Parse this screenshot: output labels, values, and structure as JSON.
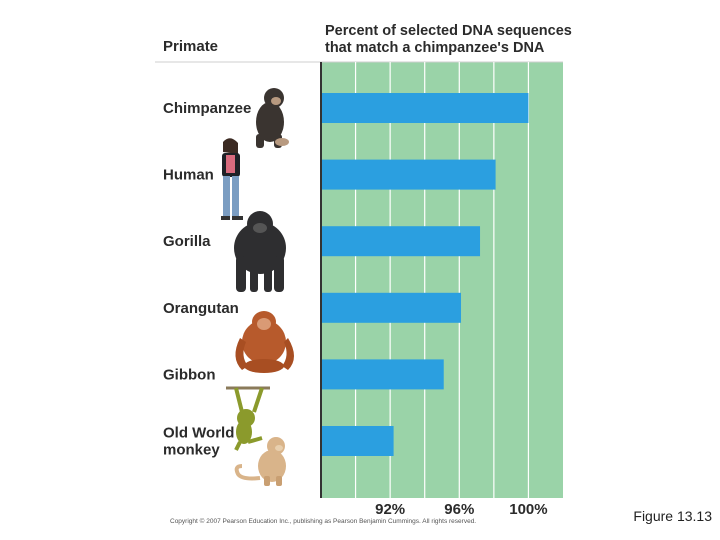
{
  "header": {
    "primate_col": "Primate",
    "chart_title_lines": [
      "Percent of selected DNA sequences",
      "that match a chimpanzee's DNA"
    ]
  },
  "copyright": "Copyright © 2007 Pearson Education Inc., publishing as Pearson Benjamin Cummings. All rights reserved.",
  "caption": "Figure 13.13",
  "colors": {
    "panel": "#9ad3a8",
    "bar": "#2b9fe0",
    "grid": "#ffffff",
    "axis": "#333333",
    "label_bg": "#ffffff"
  },
  "icons": [
    "chimpanzee-icon",
    "human-icon",
    "gorilla-icon",
    "orangutan-icon",
    "gibbon-icon",
    "old-world-monkey-icon"
  ],
  "chart_data": {
    "type": "bar",
    "orientation": "horizontal",
    "title": "Percent of selected DNA sequences that match a chimpanzee's DNA",
    "categories": [
      "Chimpanzee",
      "Human",
      "Gorilla",
      "Orangutan",
      "Gibbon",
      "Old World monkey"
    ],
    "category_lines": [
      [
        "Chimpanzee"
      ],
      [
        "Human"
      ],
      [
        "Gorilla"
      ],
      [
        "Orangutan"
      ],
      [
        "Gibbon"
      ],
      [
        "Old World",
        "monkey"
      ]
    ],
    "values": [
      100,
      98.1,
      97.2,
      96.1,
      95.1,
      92.2
    ],
    "xlim": [
      92,
      100
    ],
    "x_axis_domain": [
      88,
      102
    ],
    "xticks": [
      92,
      96,
      100
    ],
    "xtick_labels": [
      "92%",
      "96%",
      "100%"
    ],
    "grid_x": [
      90,
      92,
      94,
      96,
      98,
      100
    ],
    "grid": true,
    "legend": "none"
  }
}
